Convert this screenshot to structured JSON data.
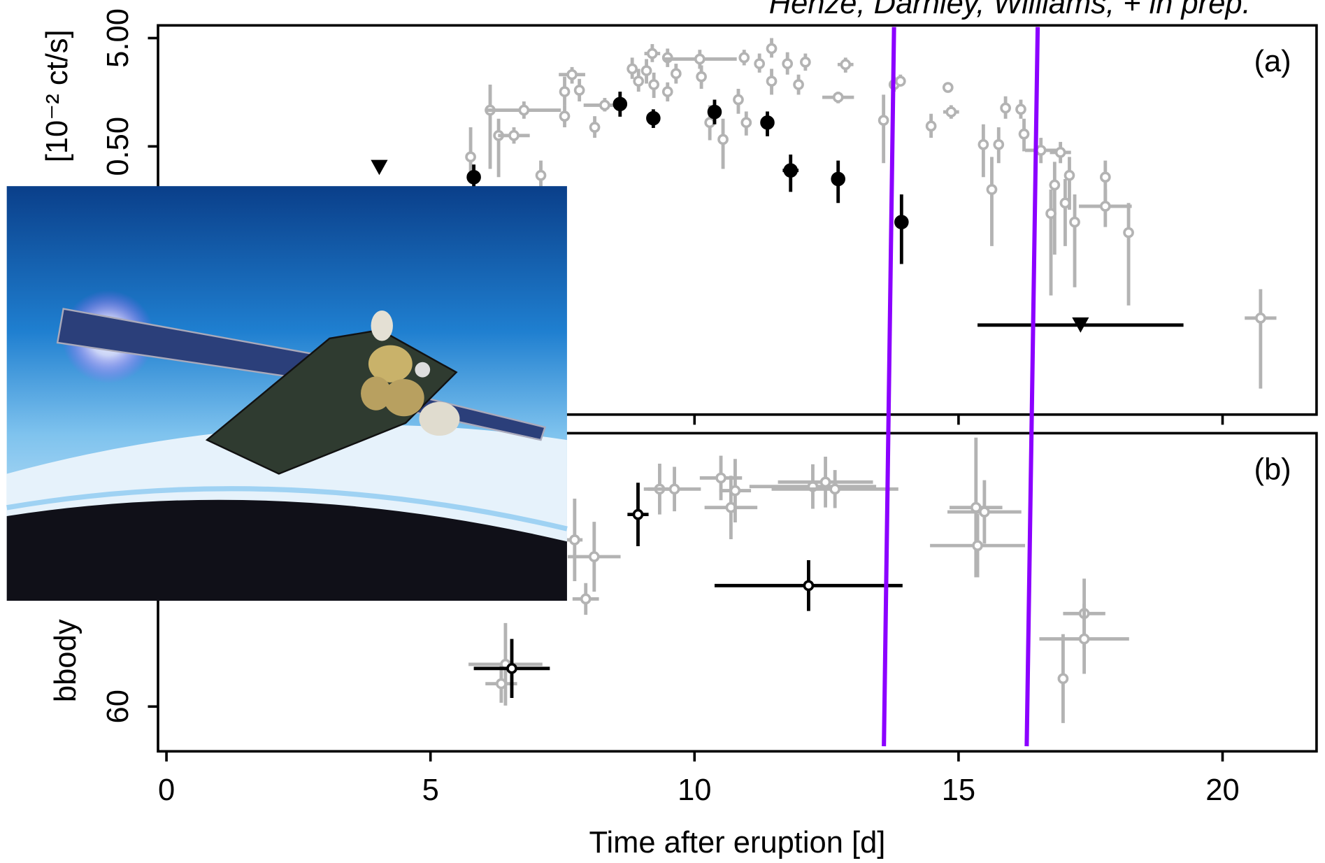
{
  "annotation": "Henze, Darnley, Williams, + in prep.",
  "chart_data": [
    {
      "type": "errorbar",
      "panel_label": "(a)",
      "ylabel": "[10⁻² ct/s]",
      "log": true,
      "xlim": [
        -0.16,
        21.78
      ],
      "xticks": [
        0,
        5,
        10,
        15,
        20
      ],
      "show_xtick_labels": false,
      "ylim": [
        0.00167,
        6.55
      ],
      "yticks": [
        {
          "value": 0.5,
          "label": "0.50"
        },
        {
          "value": 5,
          "label": "5.00"
        }
      ],
      "series": [
        {
          "color": "#b3b3b3",
          "marker": "open",
          "x": [
            5.76,
            6.13,
            6.29,
            6.58,
            6.77,
            7.09,
            7.54,
            7.68,
            7.54,
            7.82,
            8.11,
            8.3,
            8.82,
            8.94,
            9.09,
            9.23,
            9.2,
            9.49,
            9.49,
            9.65,
            10.1,
            10.13,
            10.29,
            10.54,
            10.83,
            10.94,
            10.98,
            11.23,
            11.46,
            11.46,
            11.76,
            11.97,
            12.1,
            12.72,
            12.86,
            13.58,
            13.78,
            13.9,
            14.48,
            14.8,
            14.86,
            15.47,
            15.63,
            15.76,
            15.89,
            16.18,
            16.24,
            16.56,
            16.93,
            17.1,
            16.82,
            16.75,
            17.2,
            17.02,
            17.78,
            17.78,
            18.22,
            20.72
          ],
          "values": [
            0.4,
            1.08,
            0.63,
            0.63,
            1.08,
            0.27,
            1.6,
            2.3,
            0.95,
            1.65,
            0.75,
            1.2,
            2.6,
            2.0,
            2.5,
            1.86,
            3.6,
            3.3,
            1.6,
            2.35,
            3.2,
            2.2,
            0.83,
            0.58,
            1.35,
            3.3,
            0.83,
            2.9,
            4.0,
            2.0,
            2.9,
            1.86,
            3.0,
            1.42,
            2.85,
            0.87,
            1.86,
            2.0,
            0.77,
            1.75,
            1.04,
            0.52,
            0.2,
            0.52,
            1.13,
            1.1,
            0.65,
            0.46,
            0.44,
            0.27,
            0.22,
            0.12,
            0.1,
            0.15,
            0.26,
            0.14,
            0.08,
            0.013
          ],
          "ylow": [
            0.24,
            0.31,
            0.26,
            0.53,
            0.9,
            0.18,
            1.2,
            1.9,
            0.75,
            1.3,
            0.6,
            1.05,
            2.1,
            1.6,
            1.9,
            1.4,
            3.0,
            2.7,
            1.3,
            1.9,
            2.6,
            1.7,
            0.57,
            0.31,
            1.0,
            2.8,
            0.63,
            2.4,
            3.3,
            1.5,
            2.3,
            1.5,
            2.5,
            1.25,
            2.4,
            0.35,
            1.6,
            1.8,
            0.6,
            1.6,
            0.9,
            0.26,
            0.06,
            0.35,
            0.9,
            0.9,
            0.45,
            0.35,
            0.35,
            0.13,
            0.05,
            0.021,
            0.025,
            0.06,
            0.15,
            0.09,
            0.017,
            0.0029
          ],
          "yhigh": [
            0.75,
            1.86,
            0.9,
            0.75,
            1.3,
            0.37,
            2.2,
            2.7,
            1.2,
            2.1,
            0.95,
            1.4,
            3.3,
            2.6,
            3.2,
            2.4,
            4.4,
            4.0,
            1.95,
            2.9,
            3.9,
            2.8,
            1.2,
            0.9,
            1.7,
            3.9,
            1.05,
            3.6,
            5.0,
            2.6,
            3.7,
            2.3,
            3.6,
            1.6,
            3.3,
            1.5,
            2.2,
            2.3,
            1.0,
            1.95,
            1.2,
            0.8,
            0.4,
            0.75,
            1.45,
            1.35,
            0.9,
            0.6,
            0.55,
            0.4,
            0.36,
            0.2,
            0.18,
            0.25,
            0.37,
            0.2,
            0.15,
            0.024
          ],
          "xerr": [
            0.05,
            0.1,
            0.1,
            0.3,
            0.7,
            0.05,
            0.05,
            0.25,
            0.05,
            0.05,
            0.05,
            0.4,
            0.05,
            0.05,
            0.05,
            0.05,
            0.15,
            0.1,
            0.05,
            0.05,
            0.7,
            0.05,
            0.05,
            0.05,
            0.05,
            0.05,
            0.05,
            0.05,
            0.05,
            0.05,
            0.05,
            0.05,
            0.05,
            0.3,
            0.15,
            0.05,
            0.05,
            0.05,
            0.05,
            0.05,
            0.15,
            0.05,
            0.05,
            0.05,
            0.05,
            0.05,
            0.05,
            0.3,
            0.2,
            0.05,
            0.05,
            0.05,
            0.05,
            0.05,
            0.05,
            0.5,
            0.05,
            0.3
          ]
        },
        {
          "color": "#000000",
          "marker": "filled",
          "x": [
            5.82,
            8.59,
            9.22,
            10.38,
            11.38,
            11.82,
            12.72,
            13.92
          ],
          "values": [
            0.26,
            1.23,
            0.91,
            1.04,
            0.83,
            0.3,
            0.25,
            0.1
          ],
          "ylow": [
            0.2,
            0.94,
            0.74,
            0.8,
            0.62,
            0.19,
            0.15,
            0.041
          ],
          "yhigh": [
            0.34,
            1.6,
            1.1,
            1.35,
            1.05,
            0.42,
            0.37,
            0.18
          ],
          "xerr": [
            0.1,
            0.05,
            0.05,
            0.05,
            0.05,
            0.15,
            0.05,
            0.05
          ]
        },
        {
          "color": "#000000",
          "marker": "triangle",
          "x": [
            4.03,
            17.31
          ],
          "values": [
            0.319,
            0.0112
          ],
          "xerr": [
            0,
            1.95
          ]
        }
      ]
    },
    {
      "type": "errorbar",
      "panel_label": "(b)",
      "ylabel": "bbody",
      "xlabel": "Time after eruption [d]",
      "xlim": [
        -0.16,
        21.78
      ],
      "xticks": [
        0,
        5,
        10,
        15,
        20
      ],
      "ylim": [
        45.9,
        146.1
      ],
      "yticks": [
        60
      ],
      "series": [
        {
          "color": "#b3b3b3",
          "marker": "open",
          "x": [
            6.42,
            6.34,
            7.73,
            8.1,
            7.94,
            9.34,
            9.62,
            10.5,
            10.69,
            10.77,
            12.24,
            12.48,
            12.66,
            15.33,
            15.49,
            15.36,
            16.98,
            17.38,
            17.38
          ],
          "values": [
            73.3,
            67.2,
            112.5,
            107.2,
            93.9,
            128.5,
            128.5,
            132,
            122.7,
            128,
            129.3,
            130.7,
            128.5,
            122.7,
            121.3,
            110.7,
            68.8,
            89.3,
            81.3
          ],
          "yerr": [
            13,
            6,
            13,
            11,
            5,
            8,
            7,
            7,
            10,
            10,
            7,
            8,
            6,
            22,
            10,
            10,
            14,
            11,
            11
          ],
          "xerr": [
            0.7,
            0.3,
            0.15,
            0.5,
            0.25,
            0.3,
            0.5,
            0.4,
            0.5,
            0.3,
            1.2,
            0.9,
            1.2,
            0.5,
            0.7,
            0.9,
            0.1,
            0.4,
            0.85
          ]
        },
        {
          "color": "#000000",
          "marker": "open",
          "x": [
            6.54,
            8.93,
            12.16
          ],
          "values": [
            72,
            120.5,
            98.1
          ],
          "yerr": [
            9.3,
            10,
            8
          ],
          "xerr": [
            0.72,
            0.2,
            1.78
          ]
        }
      ]
    }
  ]
}
